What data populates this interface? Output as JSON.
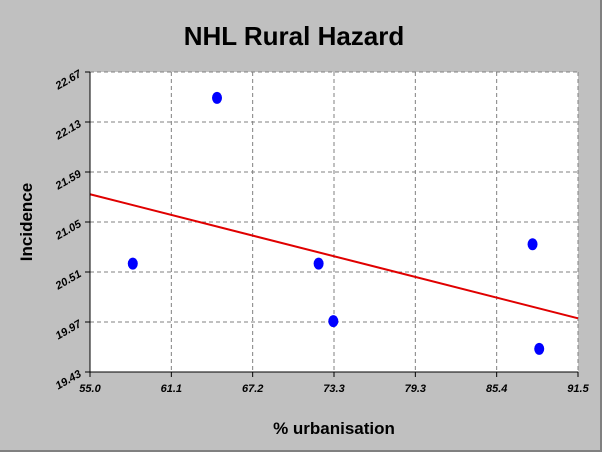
{
  "colors": {
    "background": "#c0c0c0",
    "plot_area": "#ffffff",
    "points": "#0000ff",
    "trend_line": "#e00000",
    "grid": "#808080"
  },
  "chart_data": {
    "type": "scatter",
    "title": "NHL Rural Hazard",
    "xlabel": "% urbanisation",
    "ylabel": "Incidence",
    "xlim": [
      55.0,
      91.5
    ],
    "ylim": [
      19.43,
      22.67
    ],
    "x_ticks": [
      "55.0",
      "61.1",
      "67.2",
      "73.3",
      "79.3",
      "85.4",
      "91.5"
    ],
    "y_ticks": [
      "19.43",
      "19.97",
      "20.51",
      "21.05",
      "21.59",
      "22.13",
      "22.67"
    ],
    "grid": true,
    "points": [
      {
        "x": 58.2,
        "y": 20.6
      },
      {
        "x": 64.5,
        "y": 22.39
      },
      {
        "x": 72.1,
        "y": 20.6
      },
      {
        "x": 73.2,
        "y": 19.98
      },
      {
        "x": 88.1,
        "y": 20.81
      },
      {
        "x": 88.6,
        "y": 19.68
      }
    ],
    "trend_line": {
      "x": [
        55.0,
        91.5
      ],
      "y": [
        21.35,
        20.01
      ]
    }
  }
}
